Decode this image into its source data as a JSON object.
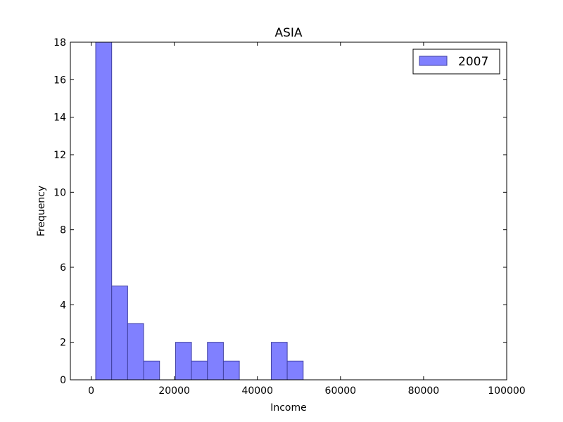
{
  "chart_data": {
    "type": "bar",
    "title": "ASIA",
    "xlabel": "Income",
    "ylabel": "Frequency",
    "xlim": [
      -5000,
      100000
    ],
    "ylim": [
      0,
      18
    ],
    "xticks": [
      0,
      20000,
      40000,
      60000,
      80000,
      100000
    ],
    "yticks": [
      0,
      2,
      4,
      6,
      8,
      10,
      12,
      14,
      16,
      18
    ],
    "grid": false,
    "legend_position": "top-right",
    "bar_color": "#8080ff",
    "edge_color": "#4040a0",
    "series": [
      {
        "name": "2007",
        "bins": [
          {
            "x0": 1100,
            "x1": 4940,
            "count": 18
          },
          {
            "x0": 4940,
            "x1": 8780,
            "count": 5
          },
          {
            "x0": 8780,
            "x1": 12620,
            "count": 3
          },
          {
            "x0": 12620,
            "x1": 16460,
            "count": 1
          },
          {
            "x0": 16460,
            "x1": 20300,
            "count": 0
          },
          {
            "x0": 20300,
            "x1": 24140,
            "count": 2
          },
          {
            "x0": 24140,
            "x1": 27980,
            "count": 1
          },
          {
            "x0": 27980,
            "x1": 31820,
            "count": 2
          },
          {
            "x0": 31820,
            "x1": 35660,
            "count": 1
          },
          {
            "x0": 35660,
            "x1": 39500,
            "count": 0
          },
          {
            "x0": 39500,
            "x1": 43340,
            "count": 0
          },
          {
            "x0": 43340,
            "x1": 47180,
            "count": 2
          },
          {
            "x0": 47180,
            "x1": 51020,
            "count": 1
          }
        ]
      }
    ]
  }
}
